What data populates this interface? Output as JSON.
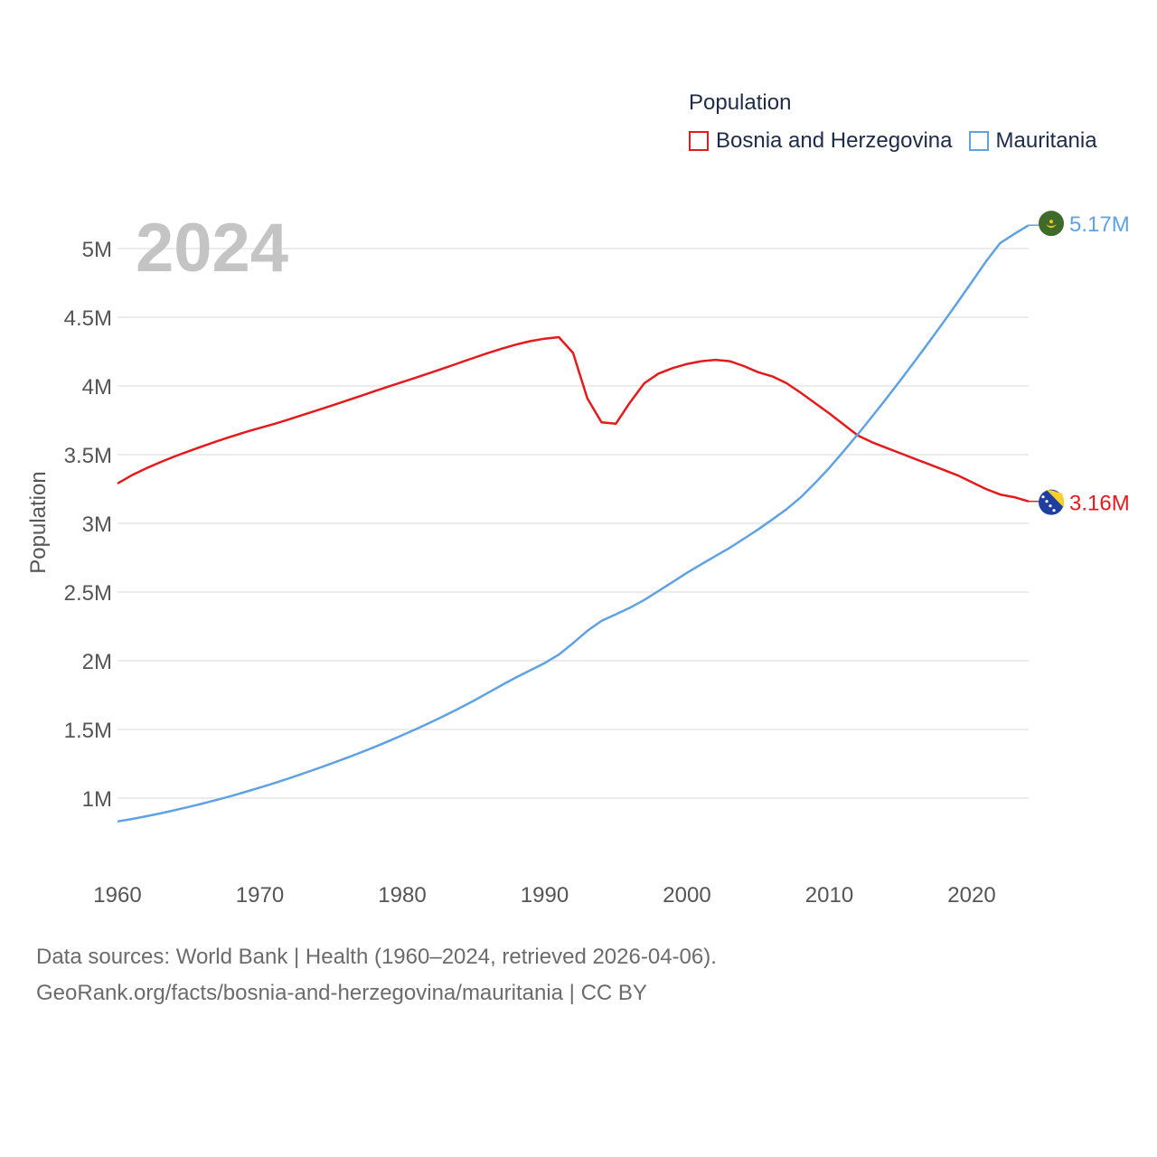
{
  "legend": {
    "title": "Population",
    "items": [
      {
        "name": "Bosnia and Herzegovina",
        "color": "#e41a1c"
      },
      {
        "name": "Mauritania",
        "color": "#5fa2e4"
      }
    ]
  },
  "year_label": "2024",
  "footer": {
    "line1": "Data sources: World Bank | Health (1960–2024, retrieved 2026-04-06).",
    "line2": "GeoRank.org/facts/bosnia-and-herzegovina/mauritania | CC BY"
  },
  "chart_data": {
    "type": "line",
    "title": "",
    "xlabel": "",
    "ylabel": "Population",
    "xlim": [
      1960,
      2024
    ],
    "ylim": [
      600000,
      5400000
    ],
    "x_ticks": [
      1960,
      1970,
      1980,
      1990,
      2000,
      2010,
      2020
    ],
    "x_tick_labels": [
      "1960",
      "1970",
      "1980",
      "1990",
      "2000",
      "2010",
      "2020"
    ],
    "y_ticks": [
      1000000,
      1500000,
      2000000,
      2500000,
      3000000,
      3500000,
      4000000,
      4500000,
      5000000
    ],
    "y_tick_labels": [
      "1M",
      "1.5M",
      "2M",
      "2.5M",
      "3M",
      "3.5M",
      "4M",
      "4.5M",
      "5M"
    ],
    "x": [
      1960,
      1961,
      1962,
      1963,
      1964,
      1965,
      1966,
      1967,
      1968,
      1969,
      1970,
      1971,
      1972,
      1973,
      1974,
      1975,
      1976,
      1977,
      1978,
      1979,
      1980,
      1981,
      1982,
      1983,
      1984,
      1985,
      1986,
      1987,
      1988,
      1989,
      1990,
      1991,
      1992,
      1993,
      1994,
      1995,
      1996,
      1997,
      1998,
      1999,
      2000,
      2001,
      2002,
      2003,
      2004,
      2005,
      2006,
      2007,
      2008,
      2009,
      2010,
      2011,
      2012,
      2013,
      2014,
      2015,
      2016,
      2017,
      2018,
      2019,
      2020,
      2021,
      2022,
      2023,
      2024
    ],
    "series": [
      {
        "name": "Bosnia and Herzegovina",
        "color": "#e41a1c",
        "end_label": "3.16M",
        "values": [
          3290000,
          3350000,
          3400000,
          3445000,
          3487000,
          3525000,
          3562000,
          3598000,
          3632000,
          3665000,
          3695000,
          3723000,
          3755000,
          3789000,
          3822000,
          3856000,
          3890000,
          3925000,
          3960000,
          3995000,
          4028000,
          4062000,
          4097000,
          4132000,
          4168000,
          4204000,
          4239000,
          4272000,
          4301000,
          4326000,
          4344000,
          4355000,
          4240000,
          3910000,
          3735000,
          3725000,
          3880000,
          4020000,
          4090000,
          4130000,
          4160000,
          4180000,
          4190000,
          4180000,
          4145000,
          4100000,
          4070000,
          4020000,
          3950000,
          3875000,
          3800000,
          3720000,
          3640000,
          3590000,
          3550000,
          3510000,
          3470000,
          3430000,
          3390000,
          3350000,
          3300000,
          3250000,
          3210000,
          3190000,
          3160000
        ]
      },
      {
        "name": "Mauritania",
        "color": "#5fa2e4",
        "end_label": "5.17M",
        "values": [
          830000,
          848000,
          868000,
          889000,
          912000,
          936000,
          961000,
          988000,
          1016000,
          1046000,
          1077000,
          1109000,
          1143000,
          1178000,
          1214000,
          1251000,
          1289000,
          1329000,
          1370000,
          1413000,
          1458000,
          1504000,
          1552000,
          1602000,
          1654000,
          1708000,
          1765000,
          1823000,
          1879000,
          1931000,
          1983000,
          2045000,
          2128000,
          2218000,
          2290000,
          2338000,
          2386000,
          2443000,
          2508000,
          2574000,
          2640000,
          2702000,
          2762000,
          2822000,
          2888000,
          2956000,
          3028000,
          3104000,
          3190000,
          3294000,
          3404000,
          3525000,
          3648000,
          3777000,
          3908000,
          4043000,
          4180000,
          4320000,
          4462000,
          4608000,
          4756000,
          4906000,
          5040000,
          5107000,
          5170000
        ]
      }
    ]
  }
}
